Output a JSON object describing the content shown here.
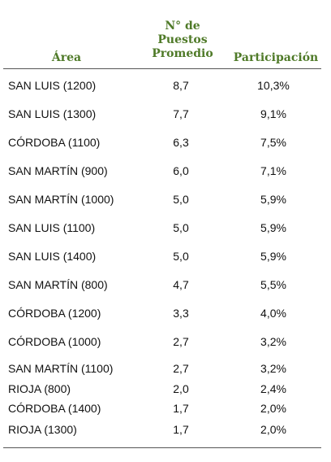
{
  "header": {
    "area": "Área",
    "puestos_line1": "N° de",
    "puestos_line2": "Puestos",
    "puestos_line3": "Promedio",
    "participacion": "Participación"
  },
  "rows": [
    {
      "area": "SAN LUIS (1200)",
      "puestos": "8,7",
      "participacion": "10,3%"
    },
    {
      "area": "SAN LUIS (1300)",
      "puestos": "7,7",
      "participacion": "9,1%"
    },
    {
      "area": "CÓRDOBA (1100)",
      "puestos": "6,3",
      "participacion": "7,5%"
    },
    {
      "area": "SAN MARTÍN (900)",
      "puestos": "6,0",
      "participacion": "7,1%"
    },
    {
      "area": "SAN MARTÍN (1000)",
      "puestos": "5,0",
      "participacion": "5,9%"
    },
    {
      "area": "SAN LUIS (1100)",
      "puestos": "5,0",
      "participacion": "5,9%"
    },
    {
      "area": "SAN LUIS (1400)",
      "puestos": "5,0",
      "participacion": "5,9%"
    },
    {
      "area": "SAN MARTÍN (800)",
      "puestos": "4,7",
      "participacion": "5,5%"
    },
    {
      "area": "CÓRDOBA (1200)",
      "puestos": "3,3",
      "participacion": "4,0%"
    },
    {
      "area": "CÓRDOBA (1000)",
      "puestos": "2,7",
      "participacion": "3,2%"
    },
    {
      "area": "SAN MARTÍN (1100)",
      "puestos": "2,7",
      "participacion": "3,2%"
    },
    {
      "area": "RIOJA (800)",
      "puestos": "2,0",
      "participacion": "2,4%"
    },
    {
      "area": "CÓRDOBA (1400)",
      "puestos": "1,7",
      "participacion": "2,0%"
    },
    {
      "area": "RIOJA (1300)",
      "puestos": "1,7",
      "participacion": "2,0%"
    }
  ],
  "colors": {
    "header_text": "#4f7a28",
    "body_text": "#111111",
    "rule": "#555555"
  }
}
